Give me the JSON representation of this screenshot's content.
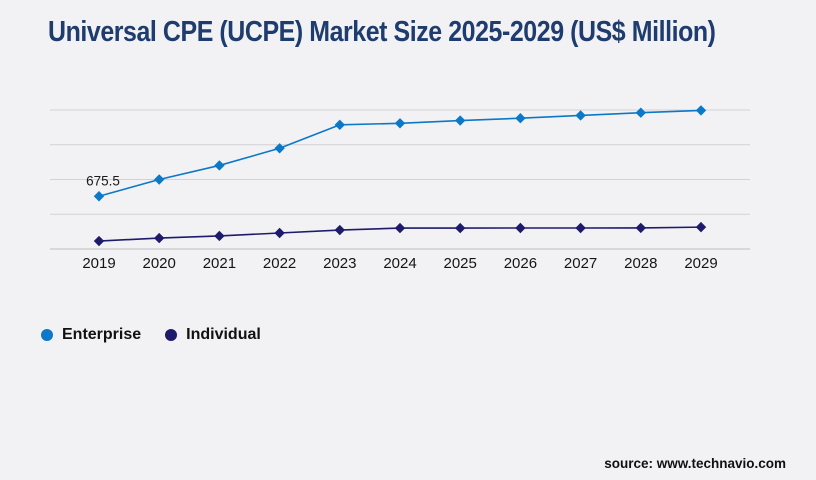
{
  "header": {
    "title": "Universal CPE (UCPE) Market Size 2025-2029 (US$ Million)"
  },
  "footer": {
    "source_label": "source: www.technavio.com"
  },
  "colors": {
    "title": "#1e3c6e",
    "background": "#f2f2f4",
    "gridline": "#d2d2d7",
    "axis_line": "#bdbdc2",
    "tick_text": "#151519",
    "enterprise": "#0b78c8",
    "individual": "#1e1b6b"
  },
  "chart_data": {
    "type": "line",
    "title": "Universal CPE (UCPE) Market Size 2025-2029 (US$ Million)",
    "xlabel": "",
    "ylabel": "",
    "categories": [
      "2019",
      "2020",
      "2021",
      "2022",
      "2023",
      "2024",
      "2025",
      "2026",
      "2027",
      "2028",
      "2029"
    ],
    "series": [
      {
        "name": "Enterprise",
        "color": "#0b78c8",
        "marker": "diamond",
        "values": [
          675.5,
          890,
          1070,
          1290,
          1590,
          1610,
          1645,
          1675,
          1710,
          1745,
          1775
        ]
      },
      {
        "name": "Individual",
        "color": "#1e1b6b",
        "marker": "diamond",
        "values": [
          102,
          140,
          167,
          205,
          243,
          268,
          268,
          269,
          269,
          270,
          280
        ]
      }
    ],
    "point_labels": [
      {
        "series": "Enterprise",
        "category": "2019",
        "text": "675.5"
      }
    ],
    "ylim": [
      0,
      1780
    ],
    "gridline_count": 5,
    "grid": true,
    "y_tick_labels_shown": false,
    "legend_position": "bottom-left"
  }
}
